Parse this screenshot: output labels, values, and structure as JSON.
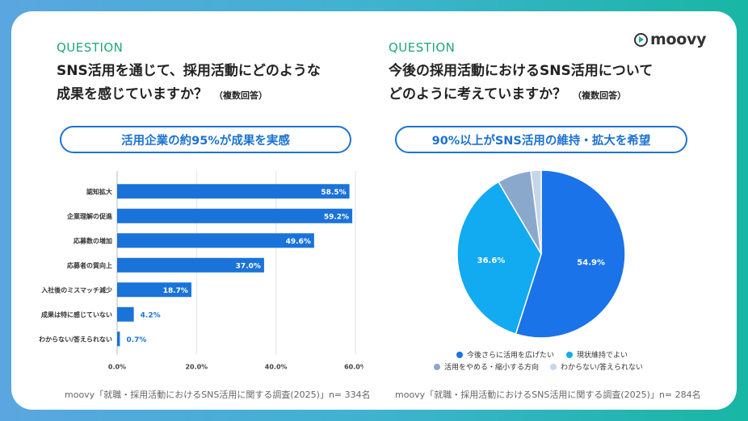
{
  "left": {
    "question_label": "QUESTION",
    "title_line1": "SNS活用を通じて、採用活動にどのような",
    "title_line2": "成果を感じていますか？",
    "title_note": "（複数回答）",
    "headline": "活用企業の約95%が成果を実感",
    "source": "moovy「就職・採用活動におけるSNS活用に関する調査(2025)」n= 334名"
  },
  "right": {
    "question_label": "QUESTION",
    "title_line1": "今後の採用活動におけるSNS活用について",
    "title_line2": "どのように考えていますか？",
    "title_note": "（複数回答）",
    "headline": "90%以上がSNS活用の維持・拡大を希望",
    "source": "moovy「就職・採用活動におけるSNS活用に関する調査(2025)」n= 284名"
  },
  "brand": {
    "logo_text": "moovy",
    "accent": "#1d72d0",
    "teal": "#21a67a"
  },
  "chart_data": [
    {
      "type": "bar",
      "orientation": "horizontal",
      "categories": [
        "認知拡大",
        "企業理解の促進",
        "応募数の増加",
        "応募者の質向上",
        "入社後のミスマッチ減少",
        "成果は特に感じていない",
        "わからない/答えられない"
      ],
      "values": [
        58.5,
        59.2,
        49.6,
        37.0,
        18.7,
        4.2,
        0.7
      ],
      "value_labels": [
        "58.5%",
        "59.2%",
        "49.6%",
        "37.0%",
        "18.7%",
        "4.2%",
        "0.7%"
      ],
      "xlim": [
        0,
        60
      ],
      "xticks": [
        "0.0%",
        "20.0%",
        "40.0%",
        "60.0%"
      ],
      "grid": true,
      "color": "#1a73d9"
    },
    {
      "type": "pie",
      "labels": [
        "今後さらに活用を広げたい",
        "現状維持でよい",
        "活用をやめる・縮小する方向",
        "わからない/答えられない"
      ],
      "values": [
        54.9,
        36.6,
        6.5,
        2.0
      ],
      "value_labels": [
        "54.9%",
        "36.6%",
        "",
        ""
      ],
      "colors": [
        "#1a73e8",
        "#12aaf0",
        "#8aa8cc",
        "#c6d6ea"
      ],
      "legend_position": "bottom"
    }
  ]
}
